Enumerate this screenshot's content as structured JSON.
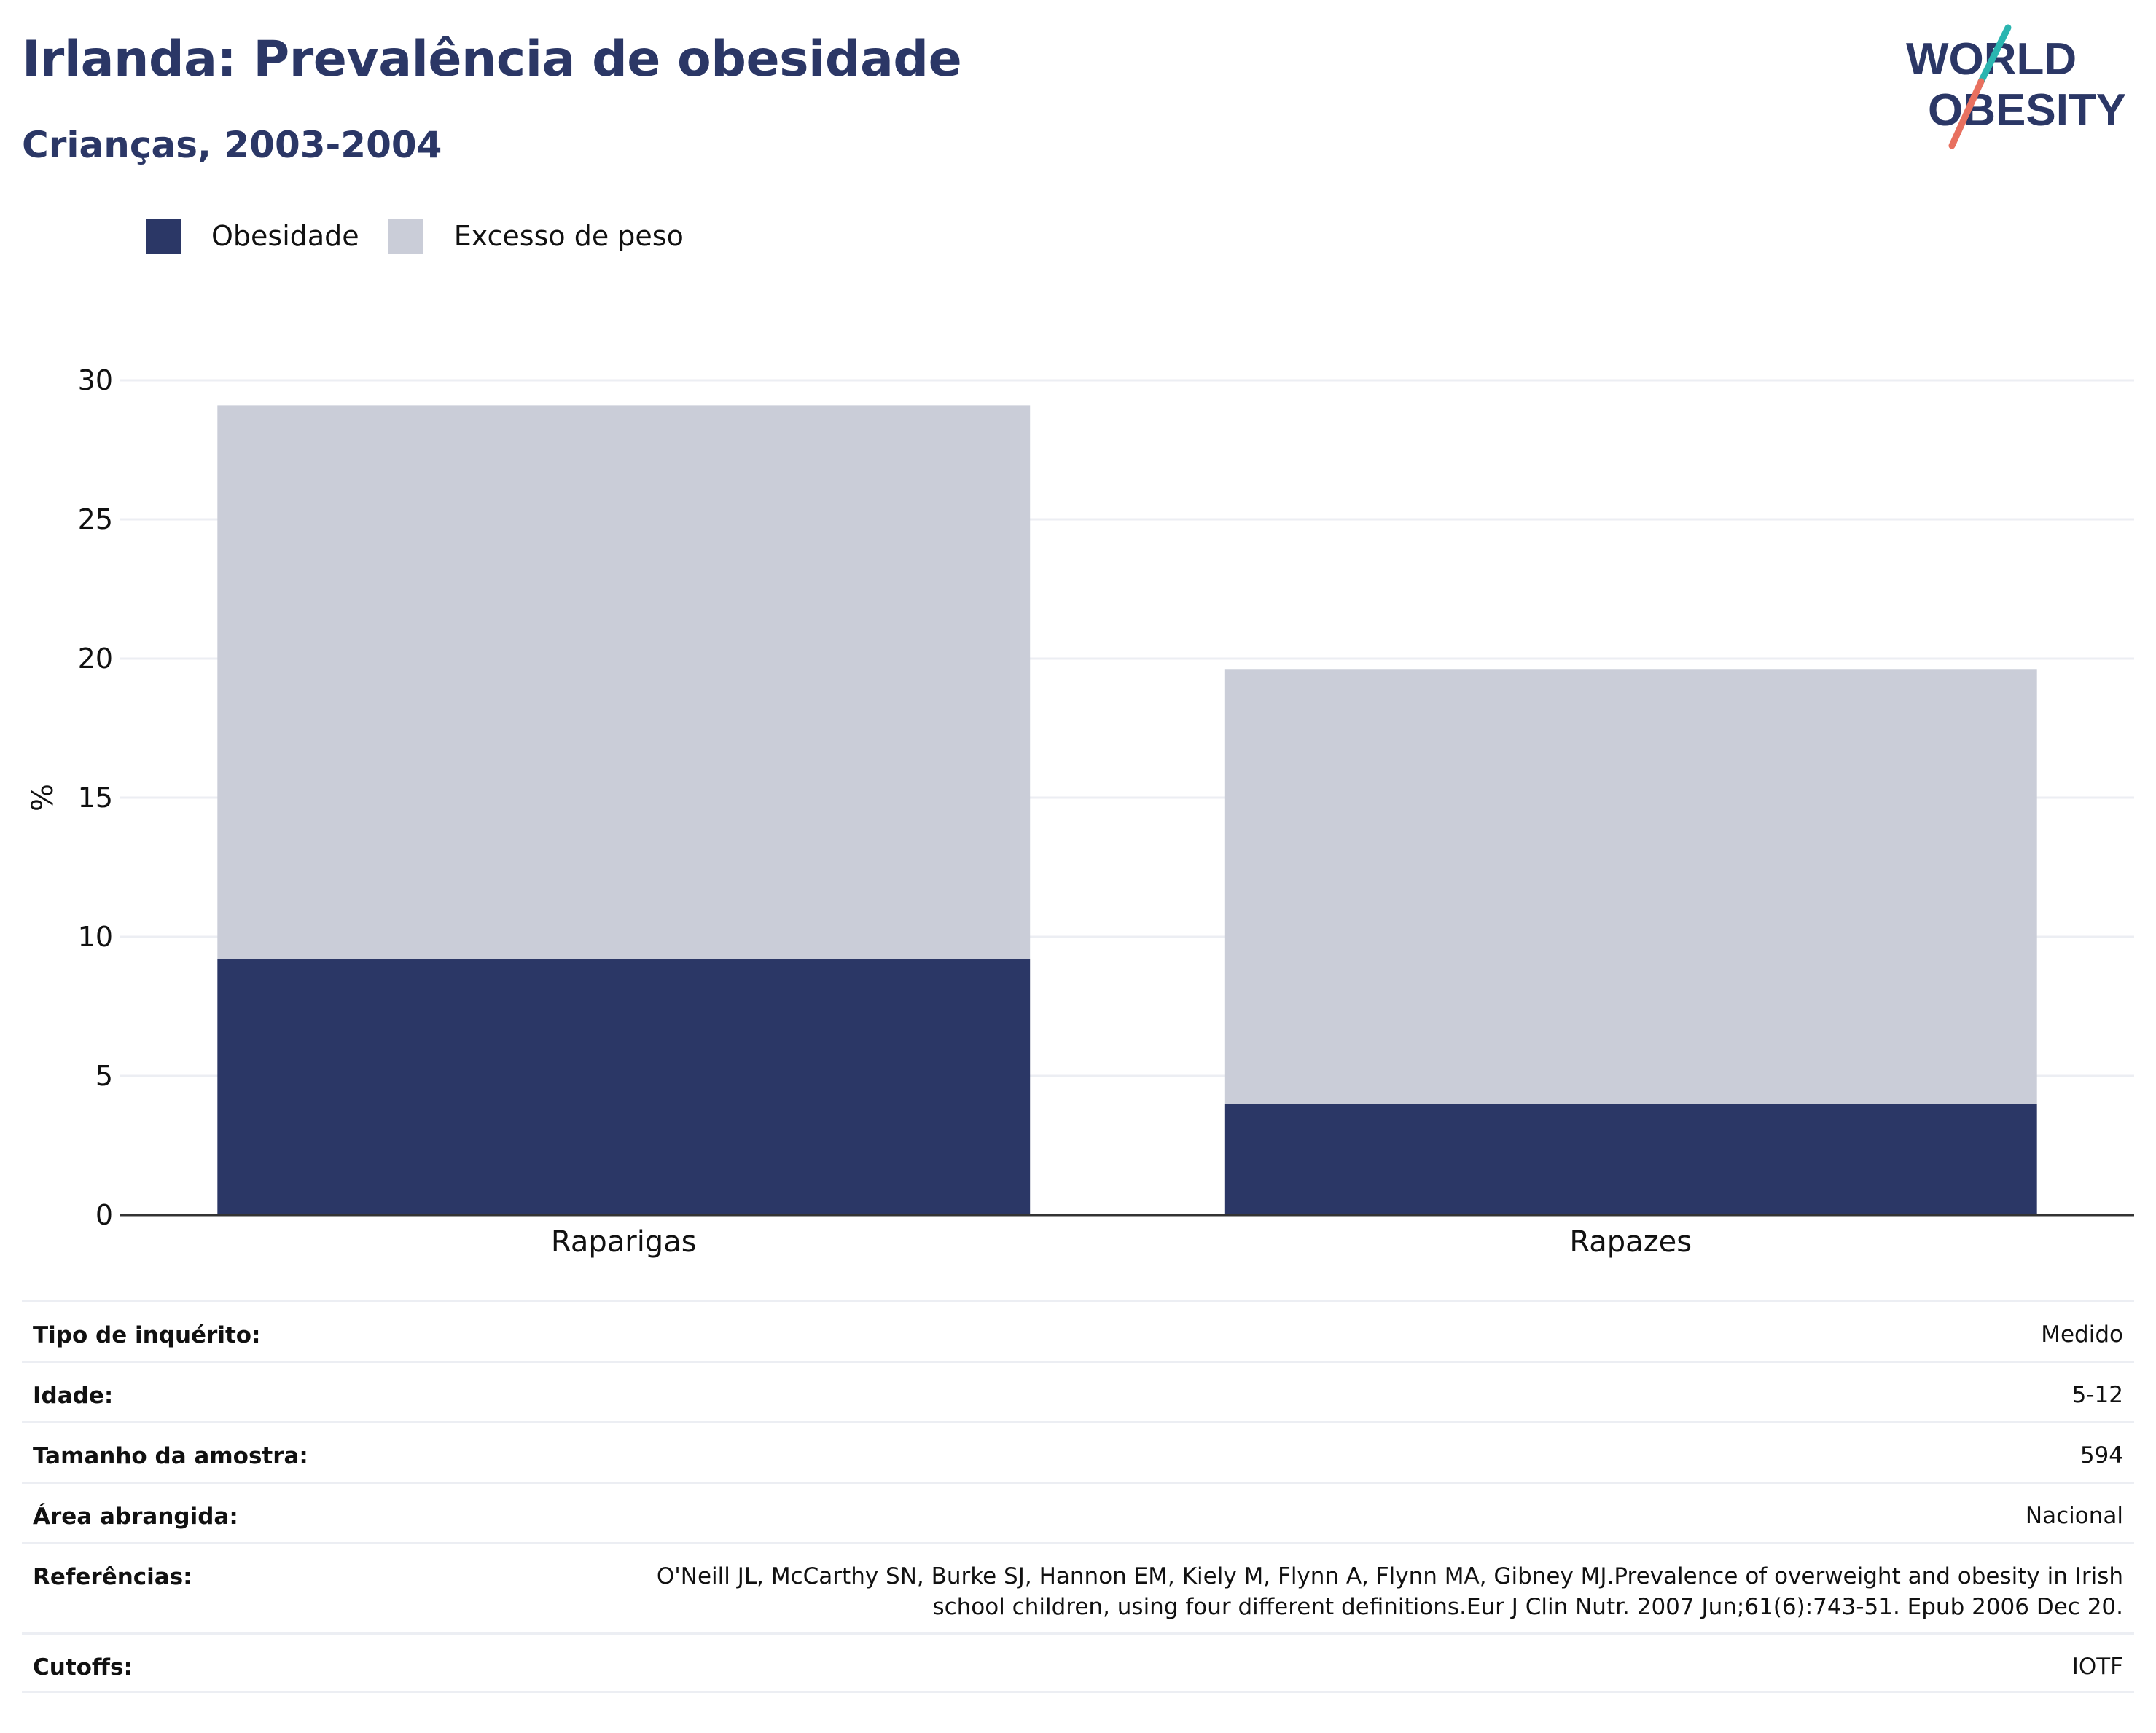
{
  "header": {
    "title": "Irlanda: Prevalência de obesidade",
    "subtitle": "Crianças, 2003-2004"
  },
  "logo": {
    "line1": "WORLD",
    "line2": "OBESITY"
  },
  "colors": {
    "obesity": "#2b3766",
    "overweight": "#cacdd8",
    "title": "#2b3766",
    "grid": "#eceef3",
    "logo_teal": "#2bb5b0",
    "logo_coral": "#e8705f"
  },
  "chart_data": {
    "type": "bar",
    "stacked": true,
    "categories": [
      "Raparigas",
      "Rapazes"
    ],
    "series": [
      {
        "name": "Obesidade",
        "values": [
          9.2,
          4.0
        ]
      },
      {
        "name": "Excesso de peso",
        "values": [
          19.9,
          15.6
        ]
      }
    ],
    "totals": [
      29.1,
      19.6
    ],
    "ylabel": "%",
    "ylim": [
      0,
      30
    ],
    "yticks": [
      0,
      5,
      10,
      15,
      20,
      25,
      30
    ],
    "legend_position": "top-left",
    "grid": true
  },
  "info": {
    "rows": [
      {
        "label": "Tipo de inquérito:",
        "value": "Medido"
      },
      {
        "label": "Idade:",
        "value": "5-12"
      },
      {
        "label": "Tamanho da amostra:",
        "value": "594"
      },
      {
        "label": "Área abrangida:",
        "value": "Nacional"
      },
      {
        "label": "Referências:",
        "value_lines": [
          "O'Neill JL, McCarthy SN, Burke SJ, Hannon EM, Kiely M, Flynn A, Flynn MA, Gibney MJ.Prevalence of overweight and obesity in Irish",
          "school children, using four different definitions.Eur J Clin Nutr. 2007 Jun;61(6):743-51. Epub 2006 Dec 20."
        ]
      },
      {
        "label": "Cutoffs:",
        "value": "IOTF"
      }
    ]
  }
}
